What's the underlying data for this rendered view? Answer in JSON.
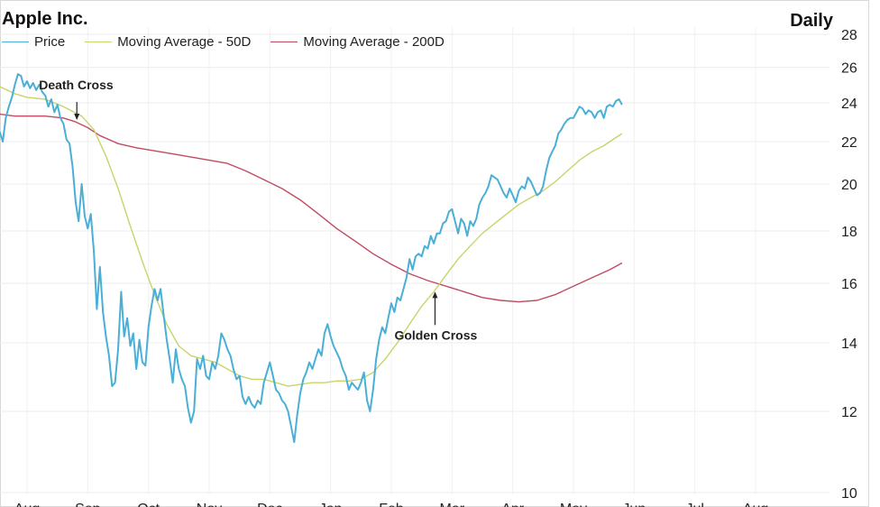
{
  "chart_data": {
    "type": "line",
    "title": "Apple Inc.",
    "frequency": "Daily",
    "y_scale": "log",
    "ylim": [
      10,
      28
    ],
    "yticks": [
      10,
      12,
      14,
      16,
      18,
      20,
      22,
      24,
      26,
      28
    ],
    "x_tick_labels": [
      "Aug",
      "Sep",
      "Oct",
      "Nov",
      "Dec",
      "Jan",
      "Feb",
      "Mar",
      "Apr",
      "May",
      "Jun",
      "Jul",
      "Aug"
    ],
    "x_range": [
      0,
      12.5
    ],
    "series": [
      {
        "name": "Price",
        "color": "#4aafd6",
        "points": [
          [
            -0.45,
            22.5
          ],
          [
            -0.4,
            22.0
          ],
          [
            -0.35,
            23.2
          ],
          [
            -0.3,
            23.8
          ],
          [
            -0.25,
            24.3
          ],
          [
            -0.2,
            25.0
          ],
          [
            -0.15,
            25.6
          ],
          [
            -0.1,
            25.5
          ],
          [
            -0.05,
            24.9
          ],
          [
            0.0,
            25.2
          ],
          [
            0.05,
            24.8
          ],
          [
            0.1,
            25.1
          ],
          [
            0.15,
            24.7
          ],
          [
            0.2,
            25.0
          ],
          [
            0.25,
            24.6
          ],
          [
            0.3,
            24.4
          ],
          [
            0.35,
            23.8
          ],
          [
            0.4,
            24.2
          ],
          [
            0.45,
            23.5
          ],
          [
            0.5,
            23.9
          ],
          [
            0.55,
            23.2
          ],
          [
            0.6,
            22.9
          ],
          [
            0.65,
            22.1
          ],
          [
            0.7,
            21.9
          ],
          [
            0.75,
            20.8
          ],
          [
            0.8,
            19.2
          ],
          [
            0.85,
            18.4
          ],
          [
            0.9,
            20.0
          ],
          [
            0.95,
            18.6
          ],
          [
            1.0,
            18.1
          ],
          [
            1.05,
            18.7
          ],
          [
            1.1,
            17.2
          ],
          [
            1.15,
            15.1
          ],
          [
            1.2,
            16.6
          ],
          [
            1.25,
            15.0
          ],
          [
            1.3,
            14.2
          ],
          [
            1.35,
            13.6
          ],
          [
            1.4,
            12.7
          ],
          [
            1.45,
            12.8
          ],
          [
            1.5,
            13.8
          ],
          [
            1.55,
            15.7
          ],
          [
            1.6,
            14.2
          ],
          [
            1.65,
            14.8
          ],
          [
            1.7,
            13.9
          ],
          [
            1.75,
            14.3
          ],
          [
            1.8,
            13.2
          ],
          [
            1.85,
            14.1
          ],
          [
            1.9,
            13.4
          ],
          [
            1.95,
            13.3
          ],
          [
            2.0,
            14.5
          ],
          [
            2.05,
            15.2
          ],
          [
            2.1,
            15.8
          ],
          [
            2.15,
            15.4
          ],
          [
            2.2,
            15.8
          ],
          [
            2.25,
            14.9
          ],
          [
            2.3,
            14.1
          ],
          [
            2.35,
            13.5
          ],
          [
            2.4,
            12.8
          ],
          [
            2.45,
            13.8
          ],
          [
            2.5,
            13.2
          ],
          [
            2.55,
            12.9
          ],
          [
            2.6,
            12.7
          ],
          [
            2.65,
            12.1
          ],
          [
            2.7,
            11.7
          ],
          [
            2.75,
            12.0
          ],
          [
            2.8,
            13.5
          ],
          [
            2.85,
            13.2
          ],
          [
            2.9,
            13.6
          ],
          [
            2.95,
            13.0
          ],
          [
            3.0,
            12.9
          ],
          [
            3.05,
            13.4
          ],
          [
            3.1,
            13.2
          ],
          [
            3.15,
            13.6
          ],
          [
            3.2,
            14.3
          ],
          [
            3.25,
            14.1
          ],
          [
            3.3,
            13.8
          ],
          [
            3.35,
            13.6
          ],
          [
            3.4,
            13.2
          ],
          [
            3.45,
            12.9
          ],
          [
            3.5,
            13.0
          ],
          [
            3.55,
            12.4
          ],
          [
            3.6,
            12.2
          ],
          [
            3.65,
            12.4
          ],
          [
            3.7,
            12.2
          ],
          [
            3.75,
            12.1
          ],
          [
            3.8,
            12.3
          ],
          [
            3.85,
            12.2
          ],
          [
            3.9,
            12.8
          ],
          [
            3.95,
            13.1
          ],
          [
            4.0,
            13.4
          ],
          [
            4.05,
            13.0
          ],
          [
            4.1,
            12.6
          ],
          [
            4.15,
            12.5
          ],
          [
            4.2,
            12.3
          ],
          [
            4.25,
            12.2
          ],
          [
            4.3,
            12.0
          ],
          [
            4.35,
            11.6
          ],
          [
            4.4,
            11.2
          ],
          [
            4.45,
            11.9
          ],
          [
            4.5,
            12.5
          ],
          [
            4.55,
            12.9
          ],
          [
            4.6,
            13.1
          ],
          [
            4.65,
            13.4
          ],
          [
            4.7,
            13.2
          ],
          [
            4.75,
            13.5
          ],
          [
            4.8,
            13.8
          ],
          [
            4.85,
            13.6
          ],
          [
            4.9,
            14.3
          ],
          [
            4.95,
            14.6
          ],
          [
            5.0,
            14.2
          ],
          [
            5.05,
            13.9
          ],
          [
            5.1,
            13.7
          ],
          [
            5.15,
            13.5
          ],
          [
            5.2,
            13.2
          ],
          [
            5.25,
            13.0
          ],
          [
            5.3,
            12.6
          ],
          [
            5.35,
            12.8
          ],
          [
            5.4,
            12.7
          ],
          [
            5.45,
            12.6
          ],
          [
            5.5,
            12.8
          ],
          [
            5.55,
            13.1
          ],
          [
            5.6,
            12.3
          ],
          [
            5.65,
            12.0
          ],
          [
            5.7,
            12.6
          ],
          [
            5.75,
            13.5
          ],
          [
            5.8,
            14.1
          ],
          [
            5.85,
            14.5
          ],
          [
            5.9,
            14.3
          ],
          [
            5.95,
            14.8
          ],
          [
            6.0,
            15.3
          ],
          [
            6.05,
            15.0
          ],
          [
            6.1,
            15.5
          ],
          [
            6.15,
            15.4
          ],
          [
            6.2,
            15.8
          ],
          [
            6.25,
            16.2
          ],
          [
            6.3,
            16.9
          ],
          [
            6.35,
            16.5
          ],
          [
            6.4,
            17.0
          ],
          [
            6.45,
            17.1
          ],
          [
            6.5,
            17.0
          ],
          [
            6.55,
            17.4
          ],
          [
            6.6,
            17.3
          ],
          [
            6.65,
            17.8
          ],
          [
            6.7,
            17.5
          ],
          [
            6.75,
            17.9
          ],
          [
            6.8,
            17.9
          ],
          [
            6.85,
            18.3
          ],
          [
            6.9,
            18.4
          ],
          [
            6.95,
            18.8
          ],
          [
            7.0,
            18.9
          ],
          [
            7.05,
            18.4
          ],
          [
            7.1,
            17.9
          ],
          [
            7.15,
            18.5
          ],
          [
            7.2,
            18.3
          ],
          [
            7.25,
            17.8
          ],
          [
            7.3,
            18.4
          ],
          [
            7.35,
            18.2
          ],
          [
            7.4,
            18.5
          ],
          [
            7.45,
            19.1
          ],
          [
            7.5,
            19.4
          ],
          [
            7.55,
            19.6
          ],
          [
            7.6,
            19.9
          ],
          [
            7.65,
            20.4
          ],
          [
            7.7,
            20.3
          ],
          [
            7.75,
            20.2
          ],
          [
            7.8,
            19.9
          ],
          [
            7.85,
            19.6
          ],
          [
            7.9,
            19.4
          ],
          [
            7.95,
            19.8
          ],
          [
            8.0,
            19.5
          ],
          [
            8.05,
            19.2
          ],
          [
            8.1,
            19.7
          ],
          [
            8.15,
            19.9
          ],
          [
            8.2,
            19.8
          ],
          [
            8.25,
            20.3
          ],
          [
            8.3,
            20.1
          ],
          [
            8.35,
            19.8
          ],
          [
            8.4,
            19.5
          ],
          [
            8.45,
            19.6
          ],
          [
            8.5,
            19.9
          ],
          [
            8.55,
            20.6
          ],
          [
            8.6,
            21.2
          ],
          [
            8.65,
            21.5
          ],
          [
            8.7,
            21.8
          ],
          [
            8.75,
            22.4
          ],
          [
            8.8,
            22.6
          ],
          [
            8.85,
            22.9
          ],
          [
            8.9,
            23.1
          ],
          [
            8.95,
            23.2
          ],
          [
            9.0,
            23.2
          ],
          [
            9.05,
            23.5
          ],
          [
            9.1,
            23.8
          ],
          [
            9.15,
            23.7
          ],
          [
            9.2,
            23.4
          ],
          [
            9.25,
            23.6
          ],
          [
            9.3,
            23.5
          ],
          [
            9.35,
            23.2
          ],
          [
            9.4,
            23.5
          ],
          [
            9.45,
            23.6
          ],
          [
            9.5,
            23.2
          ],
          [
            9.55,
            23.8
          ],
          [
            9.6,
            23.9
          ],
          [
            9.65,
            23.8
          ],
          [
            9.7,
            24.1
          ],
          [
            9.75,
            24.2
          ],
          [
            9.8,
            23.9
          ]
        ]
      },
      {
        "name": "Moving Average - 50D",
        "color": "#c8d46a",
        "points": [
          [
            -0.45,
            24.9
          ],
          [
            -0.2,
            24.5
          ],
          [
            0.0,
            24.3
          ],
          [
            0.3,
            24.2
          ],
          [
            0.6,
            23.8
          ],
          [
            0.9,
            23.3
          ],
          [
            1.1,
            22.6
          ],
          [
            1.3,
            21.3
          ],
          [
            1.5,
            19.8
          ],
          [
            1.7,
            18.2
          ],
          [
            1.9,
            16.8
          ],
          [
            2.1,
            15.6
          ],
          [
            2.3,
            14.6
          ],
          [
            2.5,
            13.9
          ],
          [
            2.7,
            13.6
          ],
          [
            2.9,
            13.5
          ],
          [
            3.1,
            13.4
          ],
          [
            3.3,
            13.2
          ],
          [
            3.5,
            13.0
          ],
          [
            3.7,
            12.9
          ],
          [
            3.9,
            12.9
          ],
          [
            4.1,
            12.8
          ],
          [
            4.3,
            12.7
          ],
          [
            4.5,
            12.75
          ],
          [
            4.7,
            12.8
          ],
          [
            4.9,
            12.8
          ],
          [
            5.1,
            12.85
          ],
          [
            5.3,
            12.85
          ],
          [
            5.5,
            12.9
          ],
          [
            5.7,
            13.1
          ],
          [
            5.9,
            13.5
          ],
          [
            6.1,
            14.0
          ],
          [
            6.3,
            14.6
          ],
          [
            6.5,
            15.2
          ],
          [
            6.7,
            15.7
          ],
          [
            6.9,
            16.3
          ],
          [
            7.1,
            16.9
          ],
          [
            7.3,
            17.4
          ],
          [
            7.5,
            17.9
          ],
          [
            7.7,
            18.3
          ],
          [
            7.9,
            18.7
          ],
          [
            8.1,
            19.1
          ],
          [
            8.3,
            19.4
          ],
          [
            8.5,
            19.7
          ],
          [
            8.7,
            20.1
          ],
          [
            8.9,
            20.6
          ],
          [
            9.1,
            21.1
          ],
          [
            9.3,
            21.5
          ],
          [
            9.5,
            21.8
          ],
          [
            9.7,
            22.2
          ],
          [
            9.8,
            22.4
          ]
        ]
      },
      {
        "name": "Moving Average - 200D",
        "color": "#c04c62",
        "points": [
          [
            -0.45,
            23.4
          ],
          [
            -0.2,
            23.3
          ],
          [
            0.0,
            23.3
          ],
          [
            0.3,
            23.3
          ],
          [
            0.6,
            23.2
          ],
          [
            0.8,
            23.0
          ],
          [
            1.0,
            22.7
          ],
          [
            1.2,
            22.3
          ],
          [
            1.5,
            21.9
          ],
          [
            1.8,
            21.7
          ],
          [
            2.1,
            21.55
          ],
          [
            2.4,
            21.4
          ],
          [
            2.7,
            21.25
          ],
          [
            3.0,
            21.1
          ],
          [
            3.3,
            20.95
          ],
          [
            3.6,
            20.6
          ],
          [
            3.9,
            20.2
          ],
          [
            4.2,
            19.8
          ],
          [
            4.5,
            19.3
          ],
          [
            4.8,
            18.7
          ],
          [
            5.1,
            18.1
          ],
          [
            5.4,
            17.6
          ],
          [
            5.7,
            17.1
          ],
          [
            6.0,
            16.7
          ],
          [
            6.3,
            16.35
          ],
          [
            6.6,
            16.1
          ],
          [
            6.9,
            15.9
          ],
          [
            7.2,
            15.7
          ],
          [
            7.5,
            15.5
          ],
          [
            7.8,
            15.4
          ],
          [
            8.1,
            15.35
          ],
          [
            8.4,
            15.4
          ],
          [
            8.7,
            15.6
          ],
          [
            9.0,
            15.9
          ],
          [
            9.3,
            16.2
          ],
          [
            9.6,
            16.5
          ],
          [
            9.8,
            16.75
          ]
        ]
      }
    ],
    "annotations": [
      {
        "text": "Death Cross",
        "x": 0.82,
        "y": 23.0
      },
      {
        "text": "Golden Cross",
        "x": 6.72,
        "y": 15.8
      }
    ]
  }
}
